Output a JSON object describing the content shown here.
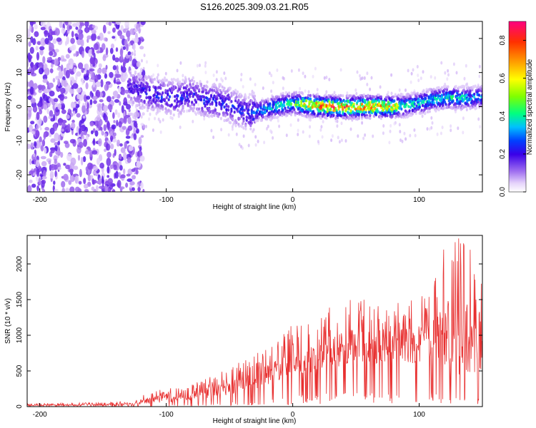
{
  "title": "S126.2025.309.03.21.R05",
  "chart_data": [
    {
      "type": "heatmap",
      "name": "spectrogram",
      "xlabel": "Height of straight line (km)",
      "ylabel": "Frequency (Hz)",
      "xlim": [
        -210,
        150
      ],
      "ylim": [
        -25,
        25
      ],
      "xticks": [
        -200,
        -100,
        0,
        100
      ],
      "yticks": [
        -20,
        -10,
        0,
        10,
        20
      ],
      "colorbar": {
        "label": "Normalized spectral amplitude",
        "range": [
          0,
          0.9
        ],
        "ticks": [
          0.0,
          0.2,
          0.4,
          0.6,
          0.8
        ],
        "colors": [
          "#ffffff",
          "#c9a6f5",
          "#7d3ae8",
          "#3a00e8",
          "#0040ff",
          "#00c0ff",
          "#00ff80",
          "#80ff00",
          "#ffff00",
          "#ffa000",
          "#ff3000",
          "#ff0080"
        ]
      },
      "ridge": {
        "x": [
          -130,
          -115,
          -100,
          -90,
          -80,
          -70,
          -60,
          -50,
          -40,
          -35,
          -30,
          -20,
          -10,
          0,
          10,
          25,
          40,
          60,
          80,
          90,
          100,
          110,
          120,
          130,
          140,
          150
        ],
        "frequency": [
          6,
          4,
          3,
          2.5,
          3.5,
          2,
          1.5,
          0.5,
          -1.5,
          -2,
          -1.5,
          -0.5,
          0.3,
          1,
          0.5,
          0,
          -0.2,
          0,
          0,
          0.3,
          1,
          2,
          2.5,
          2.5,
          2.5,
          3
        ],
        "amplitude": [
          0.25,
          0.3,
          0.3,
          0.3,
          0.28,
          0.3,
          0.3,
          0.32,
          0.3,
          0.3,
          0.38,
          0.45,
          0.5,
          0.52,
          0.75,
          0.85,
          0.85,
          0.82,
          0.75,
          0.5,
          0.48,
          0.48,
          0.5,
          0.5,
          0.45,
          0.42
        ]
      }
    },
    {
      "type": "line",
      "name": "snr",
      "xlabel": "Height of straight line (km)",
      "ylabel": "SNR (10 * v/v)",
      "xlim": [
        -210,
        150
      ],
      "ylim": [
        0,
        2400
      ],
      "xticks": [
        -200,
        -100,
        0,
        100
      ],
      "yticks": [
        0,
        500,
        1000,
        1500,
        2000
      ],
      "color": "#e83030",
      "envelope": {
        "x": [
          -210,
          -150,
          -125,
          -115,
          -100,
          -80,
          -60,
          -40,
          -20,
          -10,
          0,
          20,
          30,
          40,
          60,
          80,
          90,
          100,
          110,
          120,
          130,
          140,
          150
        ],
        "base": [
          10,
          15,
          20,
          40,
          60,
          90,
          130,
          200,
          280,
          380,
          430,
          500,
          540,
          560,
          600,
          620,
          600,
          620,
          600,
          500,
          450,
          450,
          500
        ],
        "peak": [
          40,
          60,
          80,
          200,
          250,
          320,
          450,
          650,
          850,
          1000,
          1150,
          1300,
          1400,
          1500,
          1500,
          1560,
          1500,
          1550,
          1700,
          2300,
          2400,
          2300,
          2000
        ]
      }
    }
  ]
}
